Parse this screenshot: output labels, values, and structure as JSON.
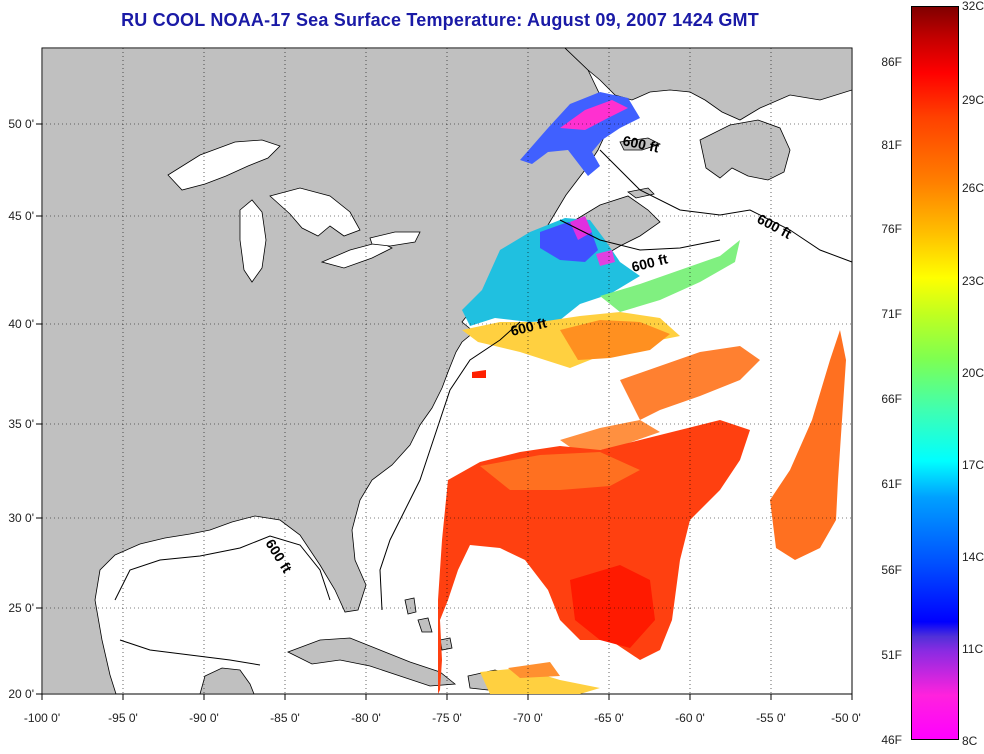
{
  "title": "RU COOL  NOAA-17  Sea Surface Temperature:  August 09, 2007 1424 GMT",
  "lon_ticks": [
    "-100 0'",
    "-95 0'",
    "-90 0'",
    "-85 0'",
    "-80 0'",
    "-75 0'",
    "-70 0'",
    "-65 0'",
    "-60 0'",
    "-55 0'",
    "-50 0'"
  ],
  "lat_ticks": [
    "50 0'",
    "45 0'",
    "40 0'",
    "35 0'",
    "30 0'",
    "25 0'",
    "20 0'"
  ],
  "contour_labels": [
    "600 ft",
    "600 ft",
    "600 ft",
    "600 ft",
    "600 ft"
  ],
  "colorbar": {
    "fahrenheit": [
      "86F",
      "81F",
      "76F",
      "71F",
      "66F",
      "61F",
      "56F",
      "51F",
      "46F"
    ],
    "celsius": [
      "32C",
      "29C",
      "26C",
      "23C",
      "20C",
      "17C",
      "14C",
      "11C",
      "8C"
    ]
  },
  "colors": {
    "land": "#c0c0c0",
    "ocean": "#ffffff",
    "title": "#1a1aa6"
  }
}
